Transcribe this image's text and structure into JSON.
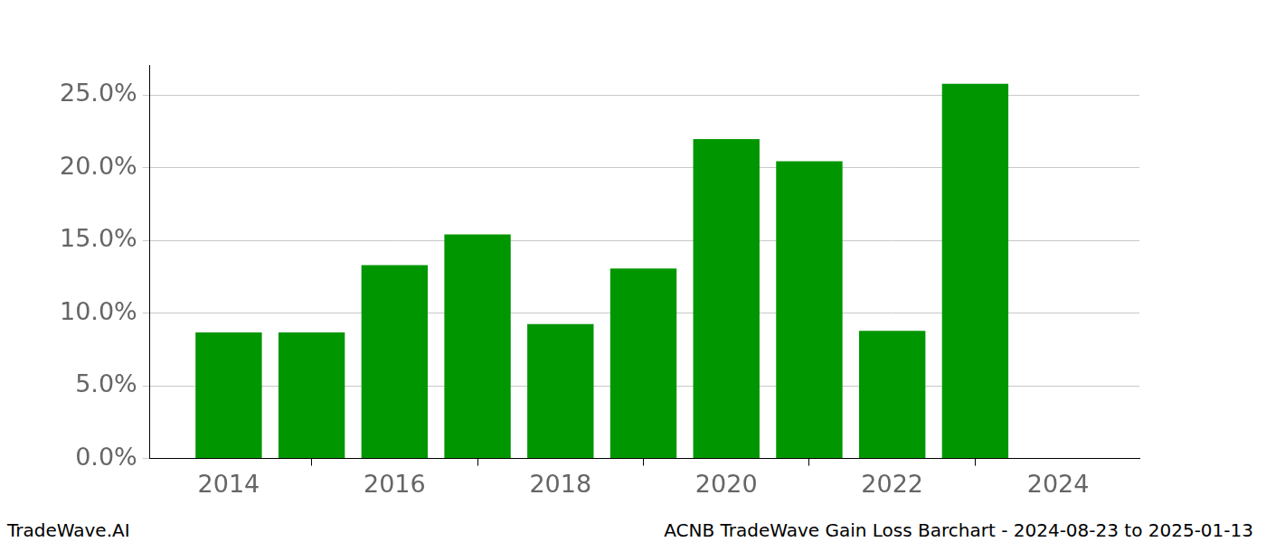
{
  "chart_data": {
    "type": "bar",
    "title": "ACNB TradeWave Gain Loss Barchart - 2024-08-23 to 2025-01-13",
    "watermark": "TradeWave.AI",
    "x": [
      2014,
      2015,
      2016,
      2017,
      2018,
      2019,
      2020,
      2021,
      2022,
      2023
    ],
    "values": [
      8.67,
      8.67,
      13.29,
      15.4,
      9.25,
      13.06,
      21.96,
      20.43,
      8.78,
      25.76
    ],
    "color": "#009600",
    "xlim": [
      2013.05,
      2024.98
    ],
    "xticks": [
      2014,
      2016,
      2018,
      2020,
      2022,
      2024
    ],
    "ylim": [
      0,
      27.05
    ],
    "yticks": [
      {
        "value": 0,
        "label": "0.0%"
      },
      {
        "value": 5,
        "label": "5.0%"
      },
      {
        "value": 10,
        "label": "10.0%"
      },
      {
        "value": 15,
        "label": "15.0%"
      },
      {
        "value": 20,
        "label": "20.0%"
      },
      {
        "value": 25,
        "label": "25.0%"
      }
    ],
    "grid": true
  }
}
